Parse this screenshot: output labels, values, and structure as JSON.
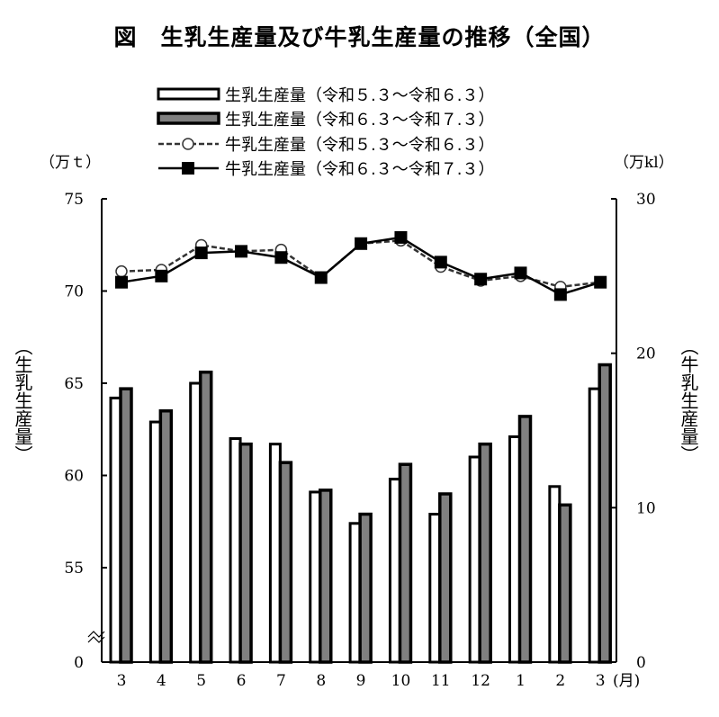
{
  "title": "図　生乳生産量及び牛乳生産量の推移（全国）",
  "chart_data": {
    "type": "bar+line",
    "title": "図　生乳生産量及び牛乳生産量の推移（全国）",
    "categories": [
      "3",
      "4",
      "5",
      "6",
      "7",
      "8",
      "9",
      "10",
      "11",
      "12",
      "1",
      "2",
      "3"
    ],
    "x_unit": "(月)",
    "left_axis": {
      "label": "（生乳生産量）",
      "unit": "（万ｔ）",
      "ticks": [
        "0",
        "55",
        "60",
        "65",
        "70",
        "75"
      ],
      "range": [
        55,
        75
      ],
      "broken": true
    },
    "right_axis": {
      "label": "（牛乳生産量）",
      "unit": "（万kl）",
      "ticks": [
        "0",
        "10",
        "20",
        "30"
      ],
      "range": [
        0,
        30
      ]
    },
    "series": [
      {
        "name": "生乳生産量（令和５.３～令和６.３）",
        "type": "bar",
        "axis": "left",
        "color": "#ffffff",
        "values": [
          64.2,
          62.9,
          65.0,
          62.0,
          61.7,
          59.1,
          57.4,
          59.8,
          57.9,
          61.0,
          62.1,
          59.4,
          64.7
        ]
      },
      {
        "name": "生乳生産量（令和６.３～令和７.３）",
        "type": "bar",
        "axis": "left",
        "color": "#808080",
        "values": [
          64.7,
          63.5,
          65.6,
          61.7,
          60.7,
          59.2,
          57.9,
          60.6,
          59.0,
          61.7,
          63.2,
          58.4,
          66.0
        ]
      },
      {
        "name": "牛乳生産量（令和５.３～令和６.３）",
        "type": "line",
        "axis": "right",
        "style": "dashed-circle",
        "values": [
          25.3,
          25.4,
          27.0,
          26.6,
          26.7,
          24.9,
          27.1,
          27.3,
          25.6,
          24.7,
          25.0,
          24.3,
          24.6
        ]
      },
      {
        "name": "牛乳生産量（令和６.３～令和７.３）",
        "type": "line",
        "axis": "right",
        "style": "solid-square",
        "values": [
          24.6,
          25.0,
          26.5,
          26.6,
          26.2,
          24.9,
          27.1,
          27.5,
          25.9,
          24.8,
          25.2,
          23.8,
          24.6
        ]
      }
    ],
    "legend_position": "top-center"
  }
}
